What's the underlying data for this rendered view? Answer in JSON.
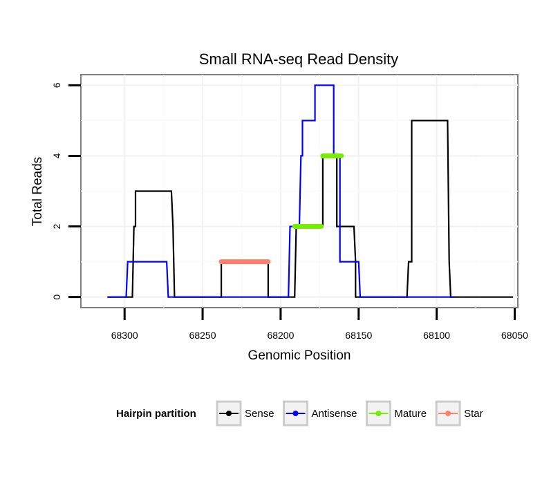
{
  "chart_data": {
    "type": "line",
    "title": "Small RNA-seq Read Density",
    "xlabel": "Genomic Position",
    "ylabel": "Total Reads",
    "x_reversed": true,
    "xlim": [
      68328,
      68048
    ],
    "ylim": [
      -0.3,
      6.3
    ],
    "xticks": [
      68300,
      68250,
      68200,
      68150,
      68100,
      68050
    ],
    "xtick_labels": [
      "68300",
      "68250",
      "68200",
      "68150",
      "68100",
      "68050"
    ],
    "yticks": [
      0,
      2,
      4,
      6
    ],
    "ytick_labels": [
      "0",
      "2",
      "4",
      "6"
    ],
    "grid": true,
    "legend": {
      "title": "Hairpin partition",
      "position": "bottom",
      "entries": [
        {
          "label": "Sense",
          "color": "#000000"
        },
        {
          "label": "Antisense",
          "color": "#0000ff"
        },
        {
          "label": "Mature",
          "color": "#77ee00"
        },
        {
          "label": "Star",
          "color": "#fa8072"
        }
      ]
    },
    "series": [
      {
        "name": "Sense",
        "color": "#000000",
        "x": [
          68311,
          68295,
          68294,
          68293,
          68293,
          68270,
          68269,
          68268,
          68238,
          68238,
          68208,
          68208,
          68191,
          68190,
          68189,
          68189,
          68173,
          68173,
          68165,
          68164,
          68164,
          68154,
          68153,
          68152,
          68152,
          68148,
          68147,
          68147,
          68119,
          68118,
          68118,
          68116,
          68116,
          68093,
          68092,
          68092,
          68091,
          68090,
          68051
        ],
        "y": [
          0,
          0,
          2,
          2,
          3,
          3,
          2,
          0,
          0,
          1,
          1,
          0,
          0,
          2,
          2,
          2,
          2,
          4,
          4,
          4,
          2,
          2,
          2,
          1,
          0,
          0,
          0,
          0,
          0,
          1,
          1,
          1,
          5,
          5,
          1,
          1,
          0,
          0,
          0
        ]
      },
      {
        "name": "Antisense",
        "color": "#0000ff",
        "x": [
          68311,
          68299,
          68298,
          68273,
          68272,
          68195,
          68194,
          68188,
          68187,
          68186,
          68186,
          68178,
          68178,
          68172,
          68172,
          68166,
          68166,
          68162,
          68162,
          68160,
          68159,
          68150,
          68149,
          68089
        ],
        "y": [
          0,
          0,
          1,
          1,
          0,
          0,
          2,
          2,
          4,
          4,
          5,
          5,
          6,
          6,
          6,
          6,
          4,
          4,
          1,
          1,
          1,
          1,
          0,
          0
        ]
      },
      {
        "name": "Mature",
        "color": "#77ee00",
        "segments": [
          {
            "x": [
              68191,
              68174
            ],
            "y": [
              2,
              2
            ]
          },
          {
            "x": [
              68173,
              68161
            ],
            "y": [
              4,
              4
            ]
          }
        ]
      },
      {
        "name": "Star",
        "color": "#fa8072",
        "segments": [
          {
            "x": [
              68238,
              68208
            ],
            "y": [
              1,
              1
            ]
          }
        ]
      }
    ]
  }
}
